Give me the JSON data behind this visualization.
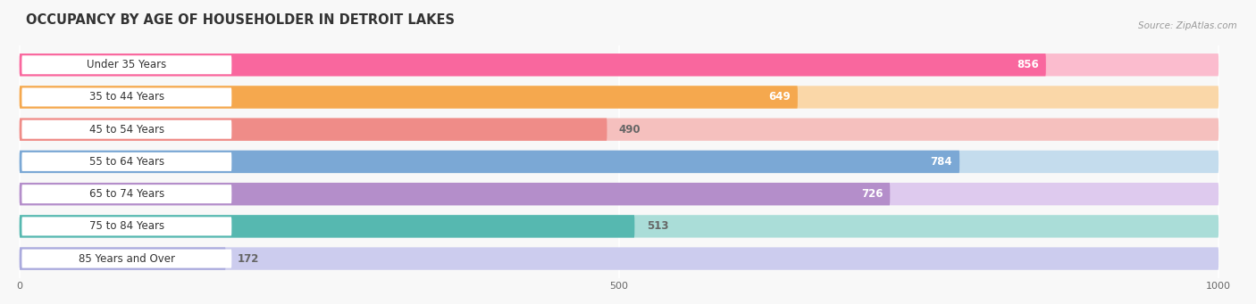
{
  "title": "OCCUPANCY BY AGE OF HOUSEHOLDER IN DETROIT LAKES",
  "source": "Source: ZipAtlas.com",
  "categories": [
    "Under 35 Years",
    "35 to 44 Years",
    "45 to 54 Years",
    "55 to 64 Years",
    "65 to 74 Years",
    "75 to 84 Years",
    "85 Years and Over"
  ],
  "values": [
    856,
    649,
    490,
    784,
    726,
    513,
    172
  ],
  "bar_colors": [
    "#F9679E",
    "#F5A84E",
    "#EF8C88",
    "#7BA8D5",
    "#B48ECA",
    "#56B8B0",
    "#AAAADD"
  ],
  "bar_bg_colors": [
    "#FBBCCE",
    "#FAD7A8",
    "#F5C0BE",
    "#C4DCED",
    "#DECAEE",
    "#AADDD8",
    "#CCCCEE"
  ],
  "value_inside": [
    true,
    true,
    false,
    true,
    true,
    false,
    false
  ],
  "xlim_max": 1000,
  "xticks": [
    0,
    500,
    1000
  ],
  "title_fontsize": 10.5,
  "label_fontsize": 8.5,
  "value_fontsize": 8.5,
  "background_color": "#f8f8f8"
}
